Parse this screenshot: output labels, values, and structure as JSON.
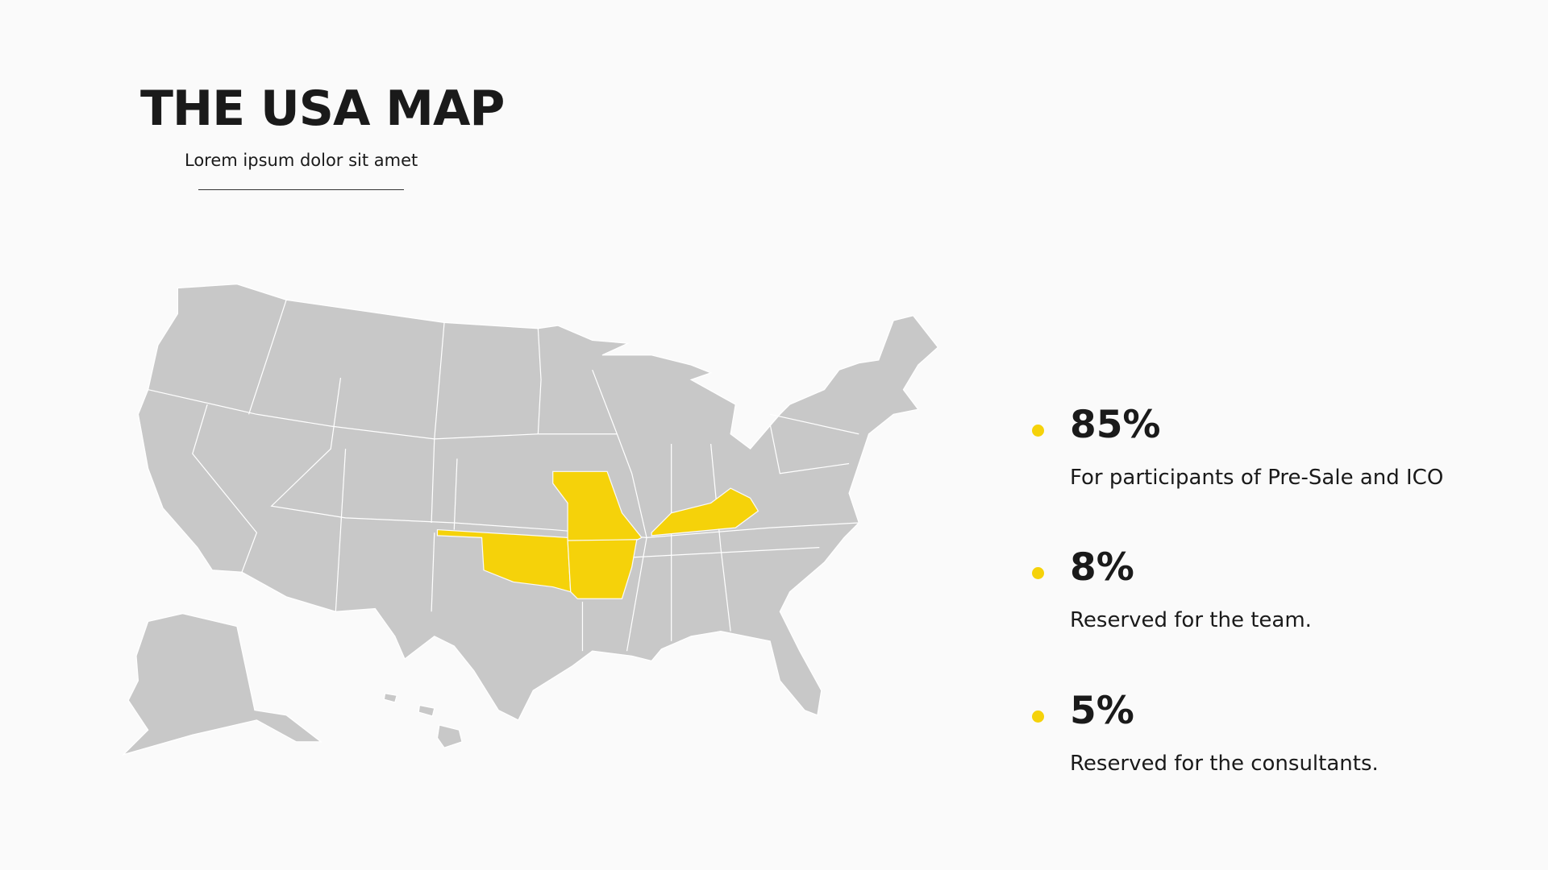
{
  "header": {
    "title": "THE USA MAP",
    "subtitle": "Lorem ipsum  dolor sit amet"
  },
  "stats": [
    {
      "value": "85%",
      "label": "For participants of Pre-Sale and ICO"
    },
    {
      "value": "8%",
      "label": "Reserved for the team."
    },
    {
      "value": "5%",
      "label": "Reserved for the consultants."
    }
  ]
}
